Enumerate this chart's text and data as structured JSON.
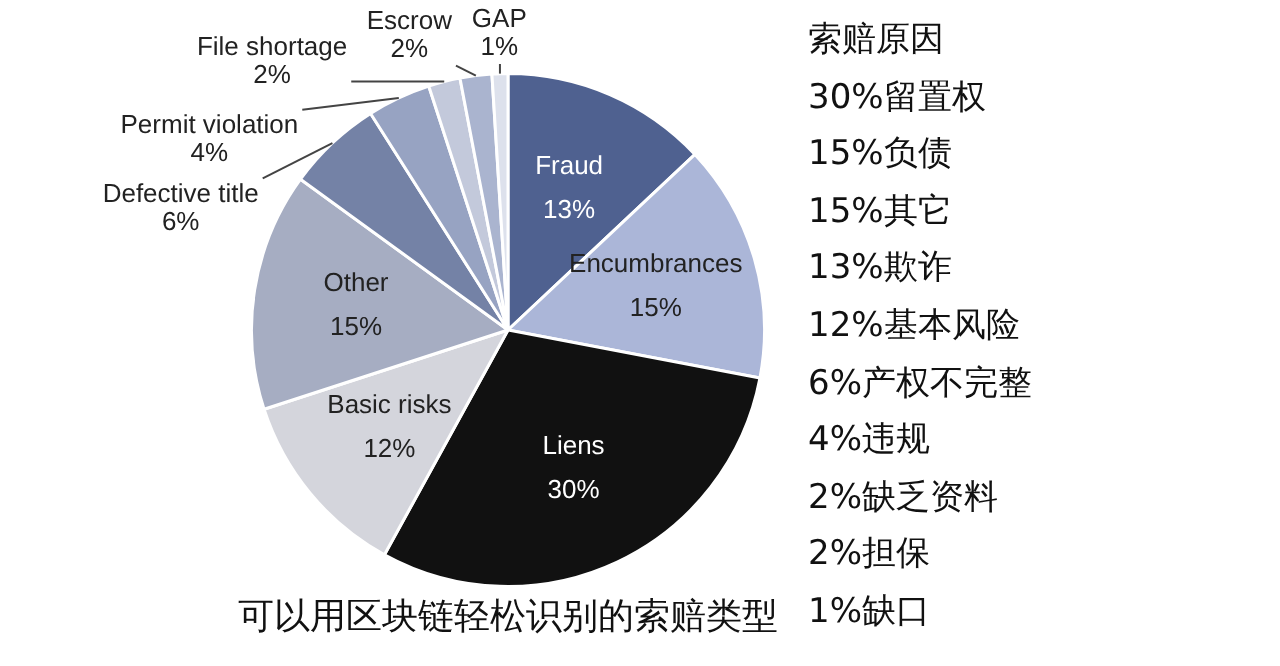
{
  "chart_data": {
    "type": "pie",
    "title": "可以用区块链轻松识别的索赔类型",
    "categories": [
      "Fraud",
      "Encumbrances",
      "Liens",
      "Basic risks",
      "Other",
      "Defective title",
      "Permit violation",
      "File shortage",
      "Escrow",
      "GAP"
    ],
    "values": [
      13,
      15,
      30,
      12,
      15,
      6,
      4,
      2,
      2,
      1
    ],
    "value_labels": [
      "13%",
      "15%",
      "30%",
      "12%",
      "15%",
      "6%",
      "4%",
      "2%",
      "2%",
      "1%"
    ],
    "colors": [
      "#4f6190",
      "#abb6d8",
      "#111111",
      "#d4d5dc",
      "#a6adc2",
      "#7482a6",
      "#97a3c2",
      "#c3c9db",
      "#aab4cf",
      "#dde1ec"
    ],
    "legend": false,
    "annotations": [
      "索赔原因",
      "30%留置权",
      "15%负债",
      "15%其它",
      "13%欺诈",
      "12%基本风险",
      "6%产权不完整",
      "4%违规",
      "2%缺乏资料",
      "2%担保",
      "1%缺口"
    ]
  }
}
